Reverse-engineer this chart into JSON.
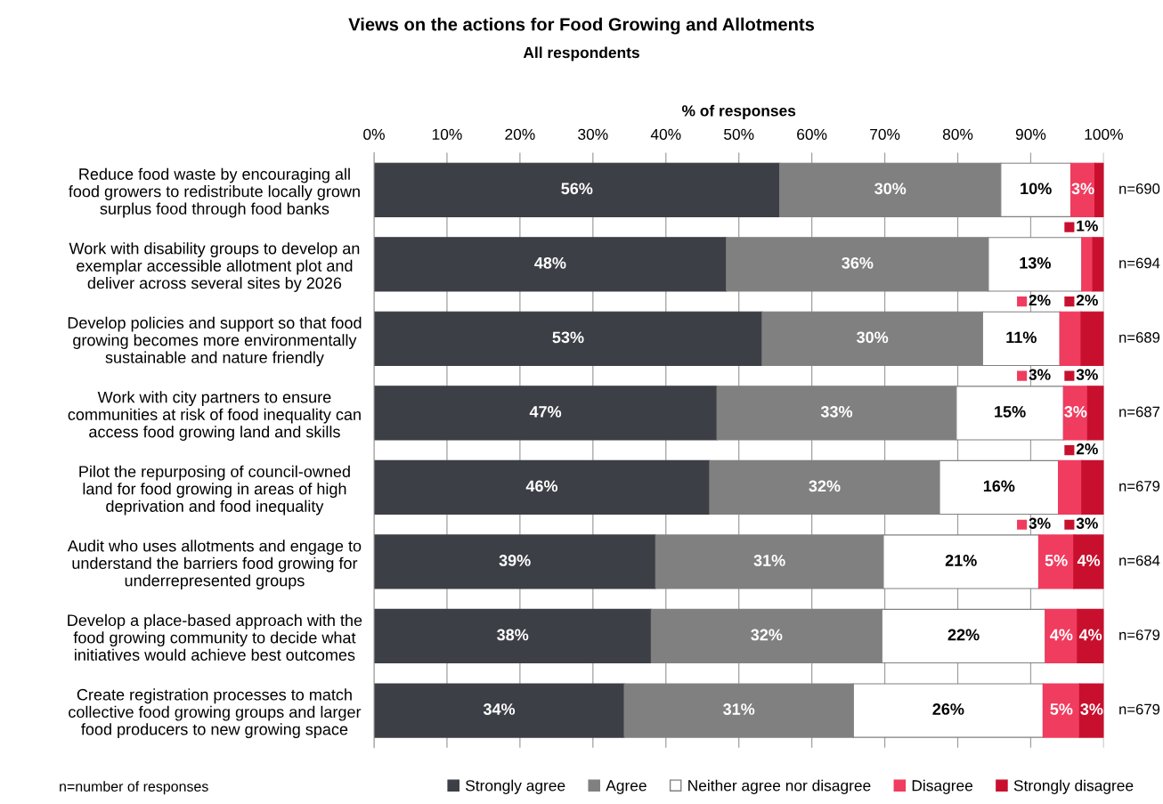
{
  "chart_data": {
    "type": "bar",
    "orientation": "horizontal",
    "stacked": true,
    "title": "Views on the actions for Food Growing and Allotments",
    "subtitle": "All respondents",
    "xlabel": "% of responses",
    "categories": [
      "Reduce food waste by encouraging all\nfood growers to redistribute locally grown\nsurplus food through food banks",
      "Work with disability groups to develop an\nexemplar accessible allotment plot and\ndeliver across several sites by 2026",
      "Develop policies and support so that food\ngrowing becomes more environmentally\nsustainable and nature friendly",
      "Work with city partners to ensure\ncommunities at risk of food inequality can\naccess food growing land and skills",
      "Pilot the repurposing of council-owned\nland for food growing in areas of high\ndeprivation and food inequality",
      "Audit who uses allotments and engage to\nunderstand the barriers food growing for\nunderrepresented groups",
      "Develop a place-based approach with the\nfood growing community to decide what\ninitiatives would achieve best outcomes",
      "Create registration processes to match\ncollective food growing groups and larger\nfood producers to new growing space"
    ],
    "series": [
      {
        "name": "Strongly agree",
        "color": "#3c3f45",
        "values": [
          55.6,
          48.3,
          53.2,
          47,
          46,
          38.6,
          38,
          34.3
        ],
        "value_labels": [
          "56%",
          "48%",
          "53%",
          "47%",
          "46%",
          "39%",
          "38%",
          "34%"
        ]
      },
      {
        "name": "Agree",
        "color": "#808080",
        "values": [
          30.3,
          35.9,
          30.2,
          32.8,
          31.5,
          31.2,
          31.6,
          31.4
        ],
        "value_labels": [
          "30%",
          "36%",
          "30%",
          "33%",
          "32%",
          "31%",
          "32%",
          "31%"
        ]
      },
      {
        "name": "Neither agree nor disagree",
        "color": "#ffffff",
        "values": [
          9.6,
          12.8,
          10.6,
          14.7,
          16.3,
          21.3,
          22.4,
          26
        ],
        "value_labels": [
          "10%",
          "13%",
          "11%",
          "15%",
          "16%",
          "21%",
          "22%",
          "26%"
        ]
      },
      {
        "name": "Disagree",
        "color": "#f03c5f",
        "values": [
          3.3,
          1.5,
          2.9,
          3.3,
          3.2,
          4.8,
          4.4,
          5
        ],
        "value_labels": [
          "3%",
          "2%",
          "3%",
          "3%",
          "3%",
          "5%",
          "4%",
          "5%"
        ]
      },
      {
        "name": "Strongly disagree",
        "color": "#c8102e",
        "values": [
          1.2,
          1.5,
          3.1,
          2.2,
          3,
          4.1,
          3.6,
          3.3
        ],
        "value_labels": [
          "1%",
          "2%",
          "3%",
          "2%",
          "3%",
          "4%",
          "4%",
          "3%"
        ]
      }
    ],
    "xlim": [
      0,
      100
    ],
    "xticks": [
      {
        "value": 0,
        "label": "0%"
      },
      {
        "value": 10,
        "label": "10%"
      },
      {
        "value": 20,
        "label": "20%"
      },
      {
        "value": 30,
        "label": "30%"
      },
      {
        "value": 40,
        "label": "40%"
      },
      {
        "value": 50,
        "label": "50%"
      },
      {
        "value": 60,
        "label": "60%"
      },
      {
        "value": 70,
        "label": "70%"
      },
      {
        "value": 80,
        "label": "80%"
      },
      {
        "value": 90,
        "label": "90%"
      },
      {
        "value": 100,
        "label": "100%"
      }
    ],
    "grid": "x",
    "legend": "bottom",
    "annotations": [
      "n=690",
      "n=694",
      "n=689",
      "n=687",
      "n=679",
      "n=684",
      "n=679",
      "n=679",
      "n=number of responses"
    ]
  }
}
